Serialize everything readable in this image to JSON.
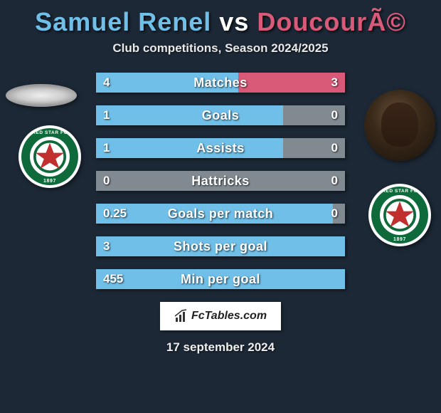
{
  "title": {
    "player1_name": "Samuel Renel",
    "vs": "vs",
    "player2_name": "DoucourÃ©",
    "player1_color": "#6fbfe8",
    "player2_color": "#d85a78"
  },
  "subtitle": "Club competitions, Season 2024/2025",
  "colors": {
    "bg": "#1c2836",
    "track": "#808a90",
    "left_bar": "#6fbfe8",
    "right_bar": "#d85a78",
    "neutral_full": "#808a90",
    "club_ring": "#0e6a3a",
    "star": "#c22f2f"
  },
  "stats": [
    {
      "label": "Matches",
      "left_val": "4",
      "right_val": "3",
      "left_pct": 57,
      "right_pct": 43
    },
    {
      "label": "Goals",
      "left_val": "1",
      "right_val": "0",
      "left_pct": 75,
      "right_pct": 0
    },
    {
      "label": "Assists",
      "left_val": "1",
      "right_val": "0",
      "left_pct": 75,
      "right_pct": 0
    },
    {
      "label": "Hattricks",
      "left_val": "0",
      "right_val": "0",
      "left_pct": 0,
      "right_pct": 0
    },
    {
      "label": "Goals per match",
      "left_val": "0.25",
      "right_val": "0",
      "left_pct": 95,
      "right_pct": 0
    },
    {
      "label": "Shots per goal",
      "left_val": "3",
      "right_val": "",
      "left_pct": 100,
      "right_pct": 0
    },
    {
      "label": "Min per goal",
      "left_val": "455",
      "right_val": "",
      "left_pct": 100,
      "right_pct": 0
    }
  ],
  "watermark": "FcTables.com",
  "date": "17 september 2024",
  "club": {
    "name_top": "RED STAR FC",
    "year": "1897"
  }
}
